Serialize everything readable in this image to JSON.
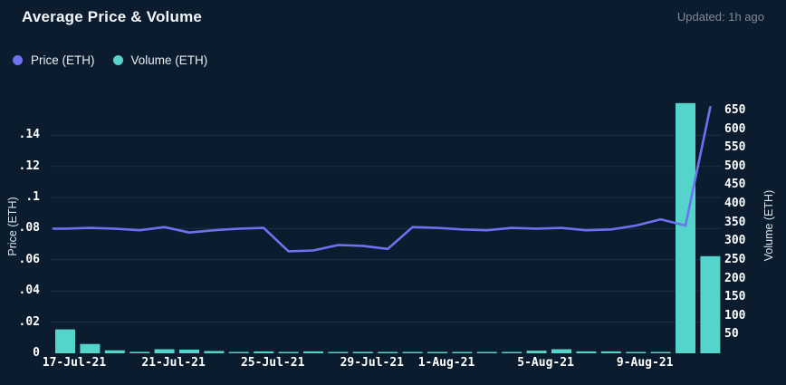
{
  "header": {
    "title": "Average Price & Volume",
    "updated": "Updated: 1h ago"
  },
  "legend": [
    {
      "label": "Price (ETH)",
      "color": "#6c72f0",
      "icon": "legend-dot-icon"
    },
    {
      "label": "Volume (ETH)",
      "color": "#55d4cb",
      "icon": "legend-dot-icon"
    }
  ],
  "colors": {
    "background": "#0a1c2d",
    "gridline": "#1b2f45",
    "price_line": "#6c72f0",
    "volume_bar": "#55d4cb",
    "tick_text": "#ffffff",
    "muted_text": "#7d8b99"
  },
  "chart_data": {
    "type": "line",
    "title": "Average Price & Volume",
    "categories": [
      "17-Jul-21",
      "18-Jul-21",
      "19-Jul-21",
      "20-Jul-21",
      "21-Jul-21",
      "22-Jul-21",
      "23-Jul-21",
      "24-Jul-21",
      "25-Jul-21",
      "26-Jul-21",
      "27-Jul-21",
      "28-Jul-21",
      "29-Jul-21",
      "30-Jul-21",
      "31-Jul-21",
      "1-Aug-21",
      "2-Aug-21",
      "3-Aug-21",
      "4-Aug-21",
      "5-Aug-21",
      "6-Aug-21",
      "7-Aug-21",
      "8-Aug-21",
      "9-Aug-21",
      "10-Aug-21",
      "11-Aug-21",
      "12-Aug-21"
    ],
    "series": [
      {
        "name": "Price (ETH)",
        "type": "line",
        "axis": "left",
        "color": "#6c72f0",
        "values": [
          0.08,
          0.0805,
          0.08,
          0.079,
          0.081,
          0.0775,
          0.079,
          0.08,
          0.0805,
          0.0655,
          0.066,
          0.0695,
          0.069,
          0.067,
          0.081,
          0.0805,
          0.0795,
          0.079,
          0.0805,
          0.08,
          0.0805,
          0.079,
          0.0795,
          0.082,
          0.086,
          0.082,
          0.158
        ]
      },
      {
        "name": "Volume (ETH)",
        "type": "bar",
        "axis": "right",
        "color": "#55d4cb",
        "values": [
          64,
          25,
          8,
          4,
          11,
          10,
          6,
          3,
          5,
          2,
          5,
          1,
          4,
          1,
          1,
          2,
          2,
          2,
          2,
          7,
          11,
          5,
          5,
          2,
          3,
          670,
          260
        ]
      }
    ],
    "left_axis": {
      "label": "Price (ETH)",
      "ticks": [
        0,
        0.02,
        0.04,
        0.06,
        0.08,
        0.1,
        0.12,
        0.14
      ],
      "tick_labels": [
        "0",
        ".02",
        ".04",
        ".06",
        ".08",
        ".1",
        ".12",
        ".14"
      ],
      "range": [
        0,
        0.164
      ]
    },
    "right_axis": {
      "label": "Volume (ETH)",
      "ticks": [
        50,
        100,
        150,
        200,
        250,
        300,
        350,
        400,
        450,
        500,
        550,
        600,
        650
      ],
      "range": [
        0,
        684
      ]
    },
    "x_tick_labels": [
      "17-Jul-21",
      "21-Jul-21",
      "25-Jul-21",
      "29-Jul-21",
      "1-Aug-21",
      "5-Aug-21",
      "9-Aug-21"
    ],
    "x_tick_indices": [
      0,
      4,
      8,
      12,
      15,
      19,
      23
    ],
    "grid": "horizontal",
    "legend_position": "top-left"
  }
}
